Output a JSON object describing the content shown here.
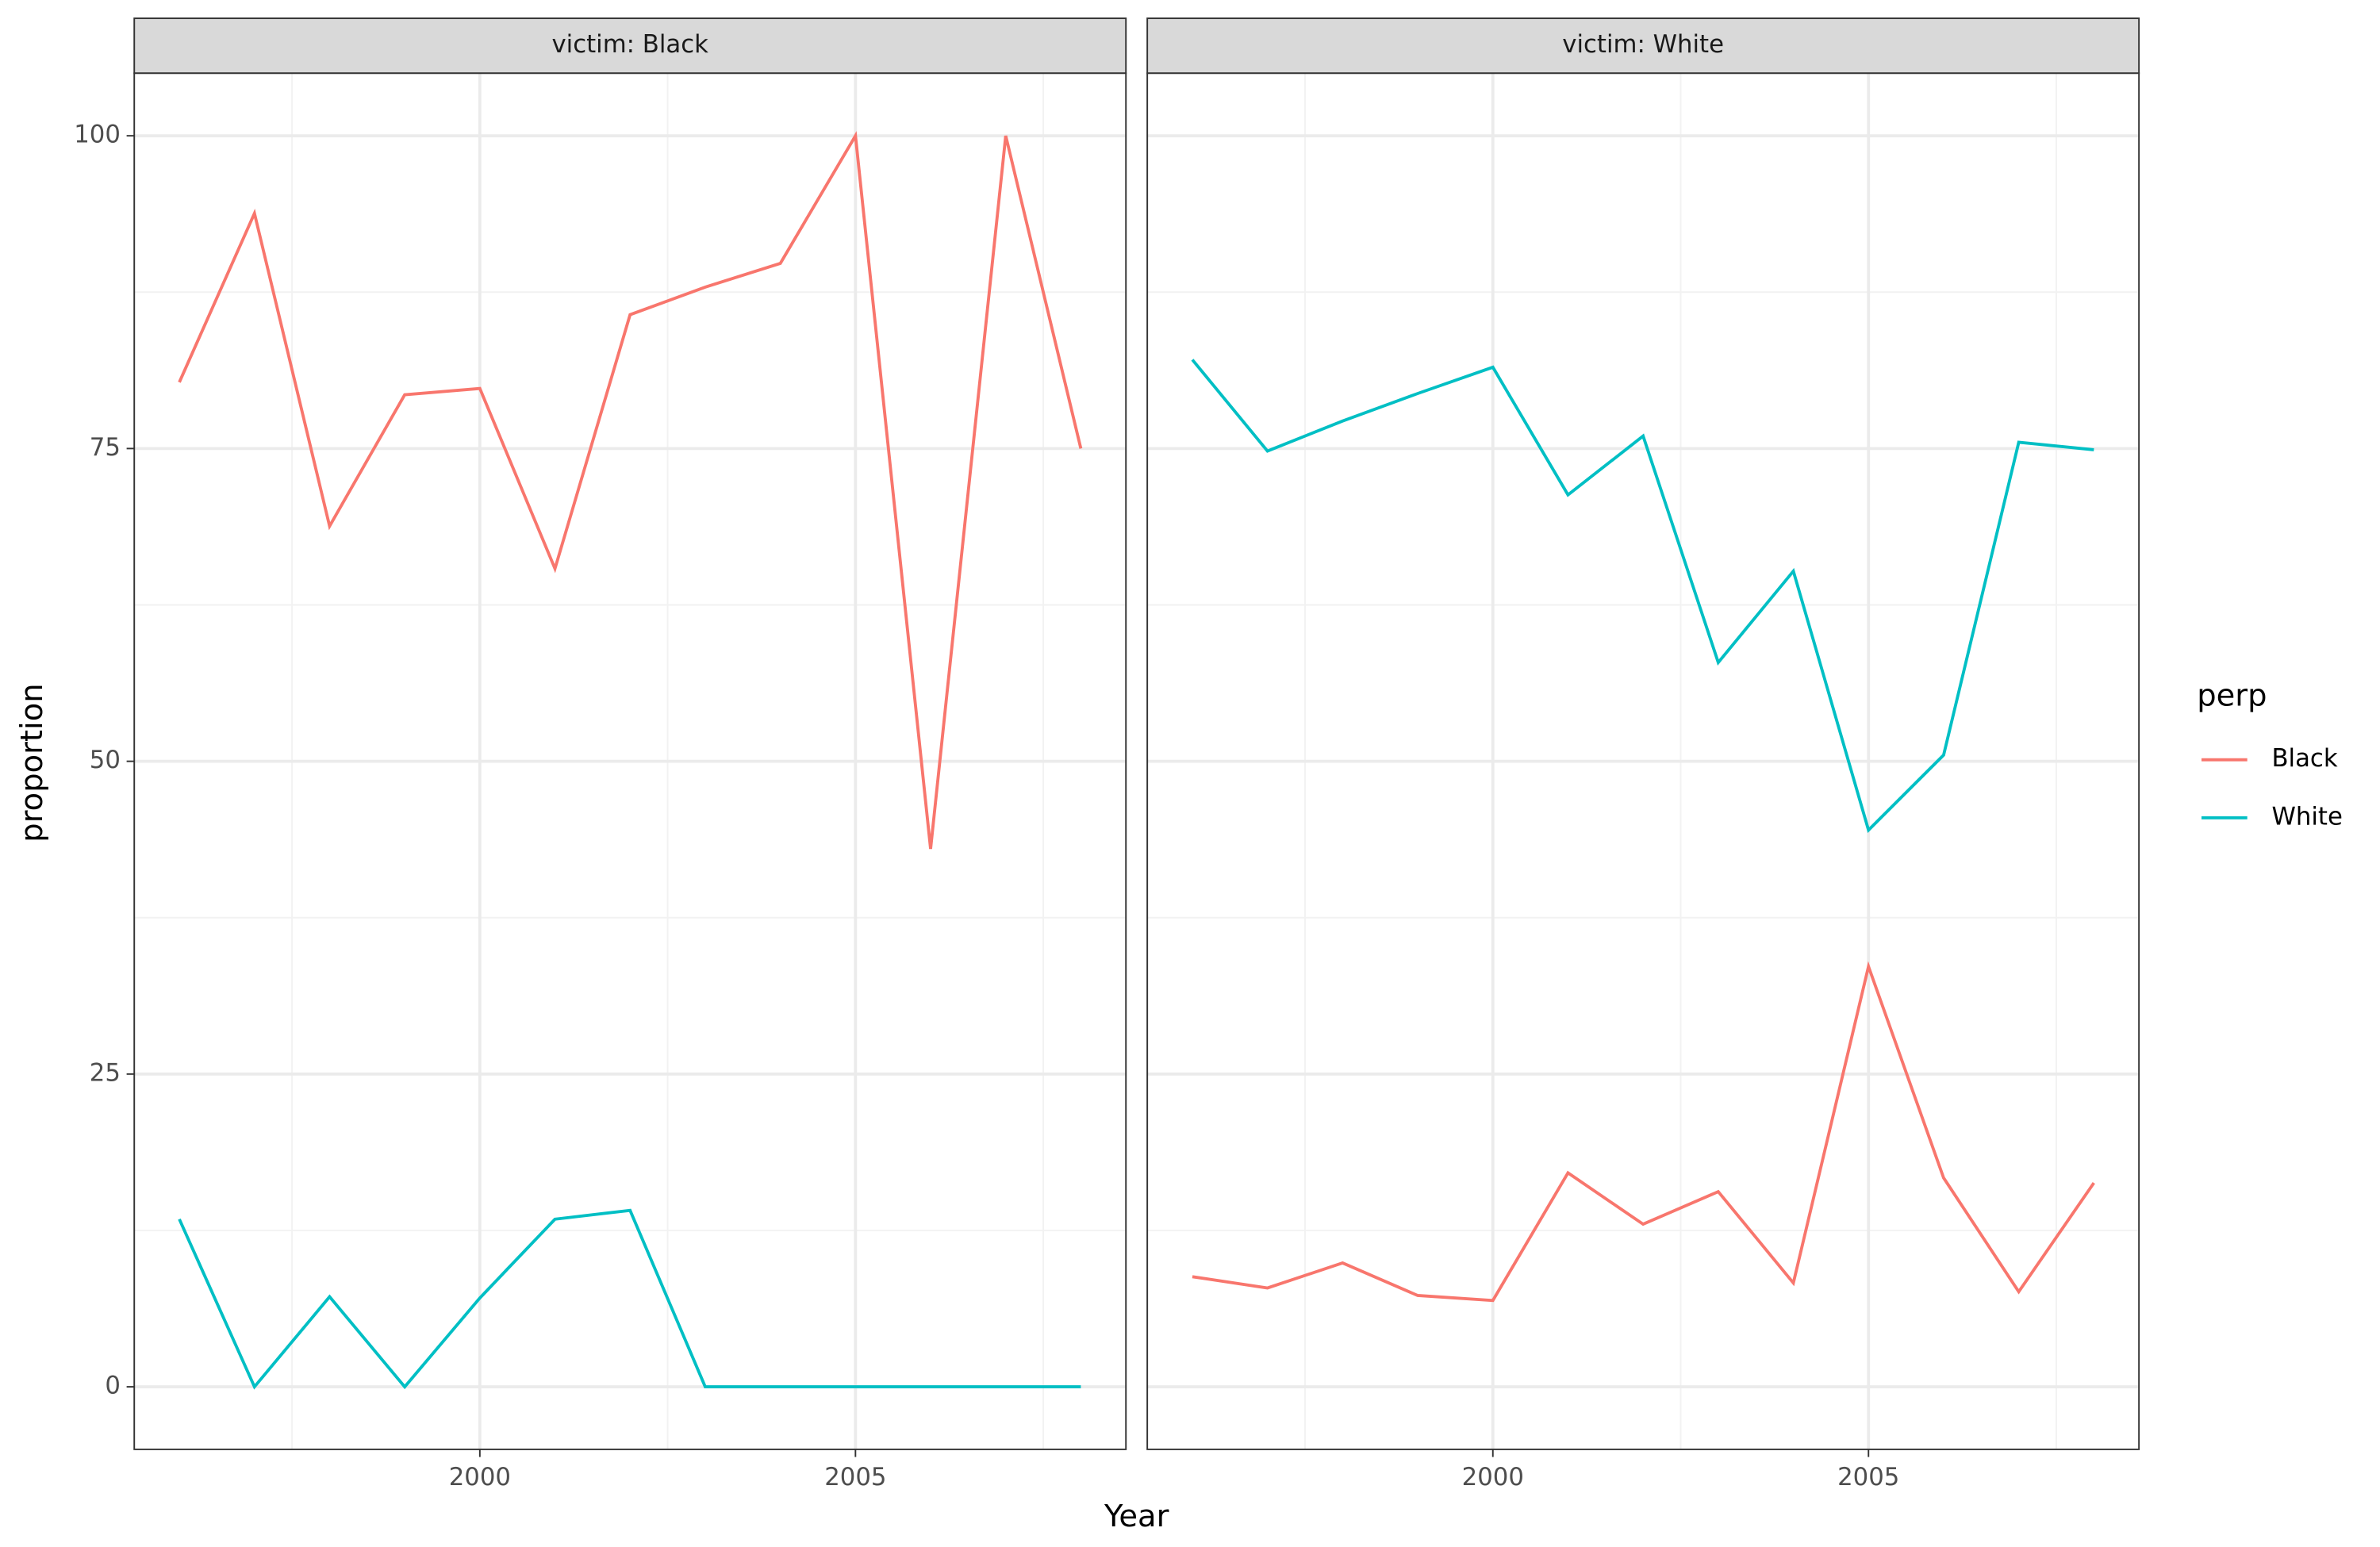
{
  "chart_data": {
    "type": "line",
    "x_label": "Year",
    "y_label": "proportion",
    "legend_title": "perp",
    "x": [
      1996,
      1997,
      1998,
      1999,
      2000,
      2001,
      2002,
      2003,
      2004,
      2005,
      2006,
      2007,
      2008
    ],
    "xlim": [
      1995.4,
      2008.6
    ],
    "xticks": [
      2000,
      2005
    ],
    "x_minor_ticks": [
      1997.5,
      2002.5,
      2007.5
    ],
    "ylim": [
      -5,
      105
    ],
    "yticks": [
      0,
      25,
      50,
      75,
      100
    ],
    "y_minor_ticks": [
      12.5,
      37.5,
      62.5,
      87.5
    ],
    "grid": true,
    "panels": [
      {
        "title": "victim: Black",
        "series": [
          {
            "name": "Black",
            "color": "#f8766d",
            "values": [
              80.3,
              93.8,
              68.8,
              79.3,
              79.8,
              65.4,
              85.7,
              87.9,
              89.8,
              100,
              43.0,
              100,
              75
            ]
          },
          {
            "name": "White",
            "color": "#00bfc4",
            "values": [
              13.4,
              0,
              7.2,
              0,
              7.1,
              13.4,
              14.1,
              0,
              0,
              0,
              0,
              0,
              0
            ]
          }
        ]
      },
      {
        "title": "victim: White",
        "series": [
          {
            "name": "Black",
            "color": "#f8766d",
            "values": [
              8.8,
              7.9,
              9.9,
              7.3,
              6.9,
              17.1,
              13.0,
              15.6,
              8.3,
              33.6,
              16.7,
              7.6,
              16.3
            ]
          },
          {
            "name": "White",
            "color": "#00bfc4",
            "values": [
              82.1,
              74.8,
              77.2,
              79.4,
              81.5,
              71.3,
              76.0,
              57.9,
              65.2,
              44.5,
              50.5,
              75.5,
              74.9
            ]
          }
        ]
      }
    ]
  }
}
